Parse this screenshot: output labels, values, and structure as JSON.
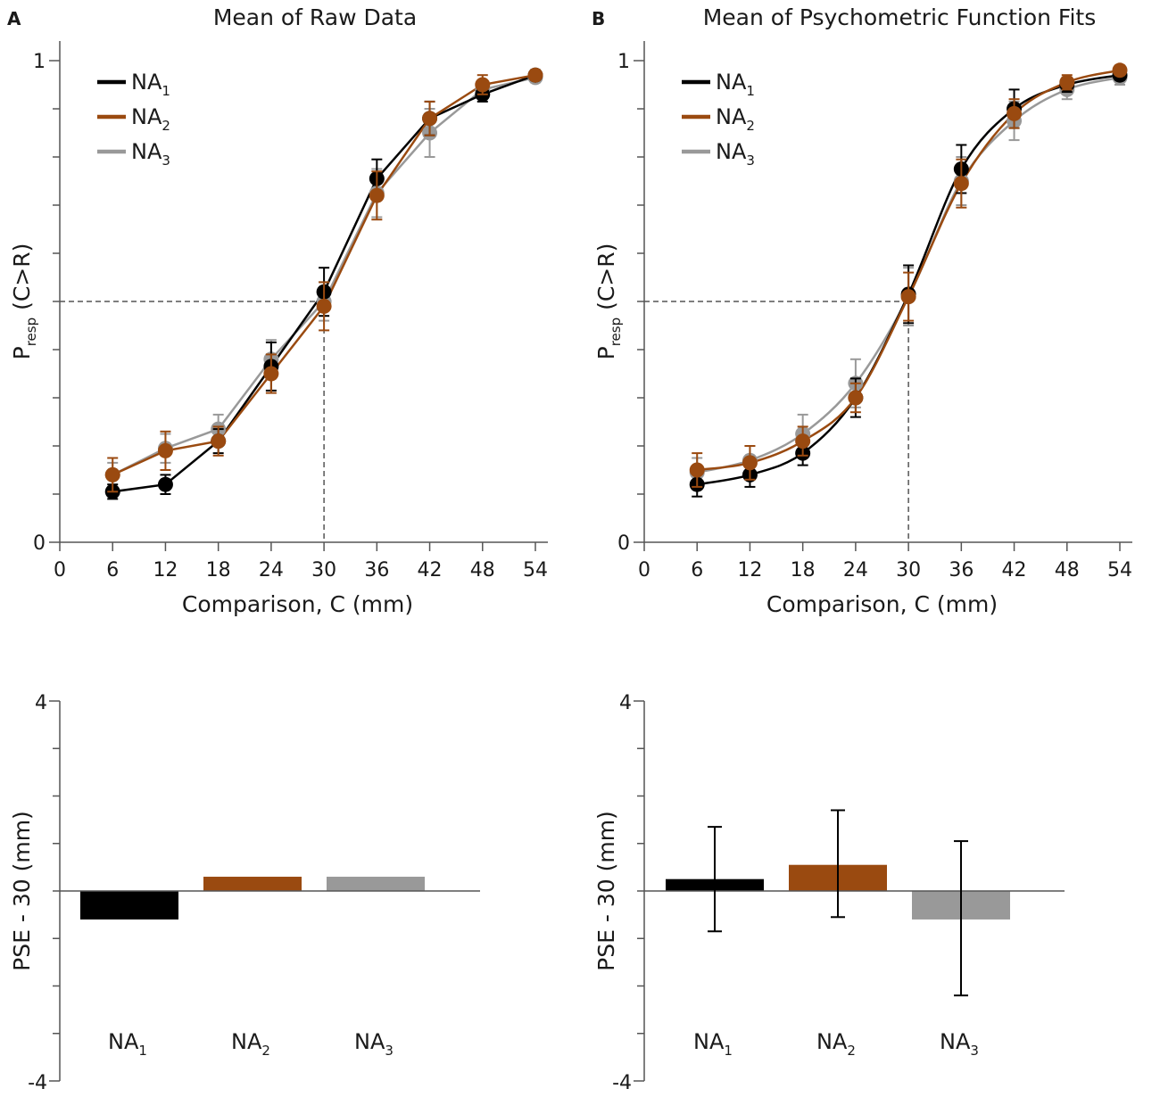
{
  "colors": {
    "NA1": "#000000",
    "NA2": "#9a4a10",
    "NA3": "#999999"
  },
  "chart_data": [
    {
      "panel": "A",
      "type": "line",
      "title": "Mean of Raw Data",
      "xlabel": "Comparison, C (mm)",
      "ylabel_main": "P",
      "ylabel_sub": "resp",
      "ylabel_tail": " (C>R)",
      "xlim": [
        0,
        54
      ],
      "ylim": [
        0,
        1
      ],
      "xticks": [
        0,
        6,
        12,
        18,
        24,
        30,
        36,
        42,
        48,
        54
      ],
      "yticklabels": [
        {
          "value": 0,
          "label": "0"
        },
        {
          "value": 1,
          "label": "1"
        }
      ],
      "yminor": [
        0.1,
        0.2,
        0.3,
        0.4,
        0.5,
        0.6,
        0.7,
        0.8,
        0.9
      ],
      "reference": {
        "x": 30,
        "y": 0.5
      },
      "legend_position": "top-left",
      "x": [
        6,
        12,
        18,
        24,
        30,
        36,
        42,
        48,
        54
      ],
      "series": [
        {
          "key": "NA1",
          "name": "NA",
          "sub": "1",
          "values": [
            0.105,
            0.12,
            0.21,
            0.365,
            0.52,
            0.755,
            0.88,
            0.93,
            0.97
          ],
          "errors": [
            0.015,
            0.02,
            0.025,
            0.05,
            0.05,
            0.04,
            0.035,
            0.015,
            0.01
          ]
        },
        {
          "key": "NA2",
          "name": "NA",
          "sub": "2",
          "values": [
            0.14,
            0.19,
            0.21,
            0.35,
            0.49,
            0.72,
            0.88,
            0.95,
            0.97
          ],
          "errors": [
            0.035,
            0.04,
            0.03,
            0.04,
            0.05,
            0.05,
            0.035,
            0.02,
            0.01
          ]
        },
        {
          "key": "NA3",
          "name": "NA",
          "sub": "3",
          "values": [
            0.14,
            0.195,
            0.235,
            0.38,
            0.5,
            0.725,
            0.85,
            0.94,
            0.965
          ],
          "errors": [
            0.025,
            0.03,
            0.03,
            0.04,
            0.04,
            0.05,
            0.05,
            0.015,
            0.01
          ]
        }
      ]
    },
    {
      "panel": "B",
      "type": "line",
      "title": "Mean of Psychometric Function Fits",
      "xlabel": "Comparison, C (mm)",
      "ylabel_main": "P",
      "ylabel_sub": "resp",
      "ylabel_tail": " (C>R)",
      "xlim": [
        0,
        54
      ],
      "ylim": [
        0,
        1
      ],
      "xticks": [
        0,
        6,
        12,
        18,
        24,
        30,
        36,
        42,
        48,
        54
      ],
      "yticklabels": [
        {
          "value": 0,
          "label": "0"
        },
        {
          "value": 1,
          "label": "1"
        }
      ],
      "yminor": [
        0.1,
        0.2,
        0.3,
        0.4,
        0.5,
        0.6,
        0.7,
        0.8,
        0.9
      ],
      "reference": {
        "x": 30,
        "y": 0.5
      },
      "legend_position": "top-left",
      "x": [
        6,
        12,
        18,
        24,
        30,
        36,
        42,
        48,
        54
      ],
      "series": [
        {
          "key": "NA1",
          "name": "NA",
          "sub": "1",
          "values": [
            0.12,
            0.14,
            0.185,
            0.3,
            0.515,
            0.775,
            0.9,
            0.95,
            0.97
          ],
          "errors": [
            0.025,
            0.025,
            0.025,
            0.04,
            0.06,
            0.05,
            0.04,
            0.015,
            0.01
          ]
        },
        {
          "key": "NA2",
          "name": "NA",
          "sub": "2",
          "values": [
            0.15,
            0.165,
            0.21,
            0.3,
            0.51,
            0.745,
            0.89,
            0.955,
            0.98
          ],
          "errors": [
            0.035,
            0.035,
            0.03,
            0.03,
            0.05,
            0.05,
            0.03,
            0.015,
            0.01
          ]
        },
        {
          "key": "NA3",
          "name": "NA",
          "sub": "3",
          "values": [
            0.145,
            0.17,
            0.225,
            0.33,
            0.51,
            0.75,
            0.875,
            0.94,
            0.965
          ],
          "errors": [
            0.03,
            0.03,
            0.04,
            0.05,
            0.06,
            0.05,
            0.04,
            0.02,
            0.015
          ]
        }
      ]
    },
    {
      "panel": "A-bottom",
      "type": "bar",
      "ylabel": "PSE - 30 (mm)",
      "ylim": [
        -4,
        4
      ],
      "yticklabels": [
        {
          "value": 4,
          "label": "4"
        },
        {
          "value": -4,
          "label": "-4"
        }
      ],
      "yminor": [
        3,
        2,
        1,
        0,
        -1,
        -2,
        -3
      ],
      "categories": [
        {
          "key": "NA1",
          "name": "NA",
          "sub": "1"
        },
        {
          "key": "NA2",
          "name": "NA",
          "sub": "2"
        },
        {
          "key": "NA3",
          "name": "NA",
          "sub": "3"
        }
      ],
      "values": [
        -0.6,
        0.3,
        0.3
      ],
      "errors": null
    },
    {
      "panel": "B-bottom",
      "type": "bar",
      "ylabel": "PSE - 30 (mm)",
      "ylim": [
        -4,
        4
      ],
      "yticklabels": [
        {
          "value": 4,
          "label": "4"
        },
        {
          "value": -4,
          "label": "-4"
        }
      ],
      "yminor": [
        3,
        2,
        1,
        0,
        -1,
        -2,
        -3
      ],
      "categories": [
        {
          "key": "NA1",
          "name": "NA",
          "sub": "1"
        },
        {
          "key": "NA2",
          "name": "NA",
          "sub": "2"
        },
        {
          "key": "NA3",
          "name": "NA",
          "sub": "3"
        }
      ],
      "values": [
        0.25,
        0.55,
        -0.6
      ],
      "errors": [
        [
          -0.85,
          1.35
        ],
        [
          -0.55,
          1.7
        ],
        [
          -2.2,
          1.05
        ]
      ]
    }
  ]
}
